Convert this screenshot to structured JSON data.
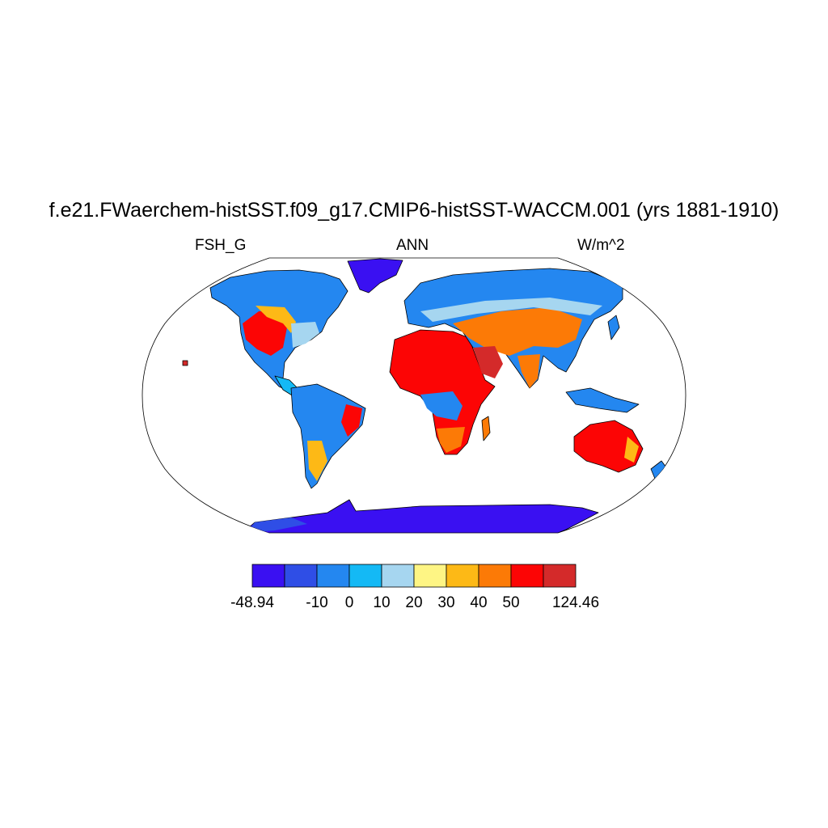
{
  "header": {
    "title": "f.e21.FWaerchem-histSST.f09_g17.CMIP6-histSST-WACCM.001 (yrs 1881-1910)",
    "left": "FSH_G",
    "center": "ANN",
    "right": "W/m^2"
  },
  "colorbar": {
    "colors": [
      "#3a10f2",
      "#2f4ee6",
      "#2487f0",
      "#14b9f5",
      "#a6d6f0",
      "#fef584",
      "#fdb916",
      "#fc7a06",
      "#fc0505",
      "#d42a2a"
    ],
    "labels": [
      "-48.94",
      "-10",
      "0",
      "10",
      "20",
      "30",
      "40",
      "50",
      "124.46"
    ]
  },
  "map": {
    "projection": "robinson",
    "land_outline_color": "#000000"
  }
}
